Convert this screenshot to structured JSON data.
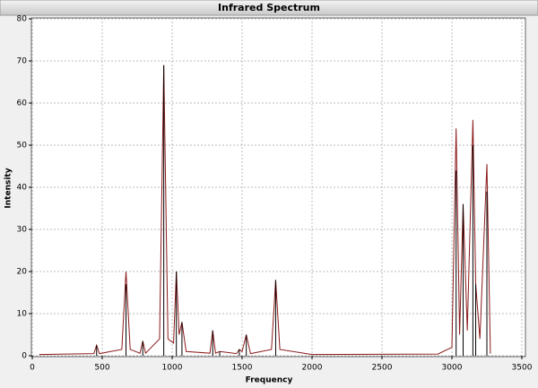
{
  "chart_data": {
    "type": "spectrum",
    "title": "Infrared Spectrum",
    "x_label": "Frequency",
    "y_label": "Intensity",
    "xlim": [
      0,
      3500
    ],
    "xticks": [
      0,
      500,
      1000,
      1500,
      2000,
      2500,
      3000,
      3500
    ],
    "ylim": [
      0,
      80
    ],
    "yticks": [
      0,
      10,
      20,
      30,
      40,
      50,
      60,
      70,
      80
    ],
    "grid": true,
    "series": [
      {
        "style": "line",
        "color": "#8b1a1a",
        "x": [
          50,
          440,
          460,
          480,
          640,
          670,
          700,
          770,
          790,
          810,
          910,
          940,
          970,
          1010,
          1030,
          1050,
          1070,
          1100,
          1270,
          1290,
          1310,
          1340,
          1460,
          1480,
          1500,
          1530,
          1560,
          1710,
          1740,
          1770,
          2000,
          2900,
          3000,
          3030,
          3055,
          3080,
          3110,
          3150,
          3170,
          3200,
          3250,
          3275
        ],
        "values": [
          0.3,
          0.5,
          2.5,
          0.5,
          1.5,
          20,
          1.5,
          0.6,
          3.5,
          0.6,
          4,
          69,
          4,
          3,
          20,
          5,
          8,
          1,
          0.6,
          6,
          0.6,
          1,
          0.5,
          1.5,
          1,
          5,
          0.5,
          1.5,
          18,
          1.5,
          0.3,
          0.4,
          2,
          54,
          5,
          36,
          6,
          56,
          17,
          4,
          45.5,
          0.5
        ]
      },
      {
        "style": "stick",
        "color": "#000000",
        "x": [
          460,
          670,
          790,
          940,
          1030,
          1070,
          1290,
          1340,
          1480,
          1530,
          1740,
          3030,
          3080,
          3150,
          3170,
          3250
        ],
        "values": [
          2.5,
          17,
          3.5,
          69,
          20,
          8,
          6,
          1,
          1.5,
          5,
          18,
          44,
          36,
          50,
          17,
          39
        ]
      }
    ]
  }
}
